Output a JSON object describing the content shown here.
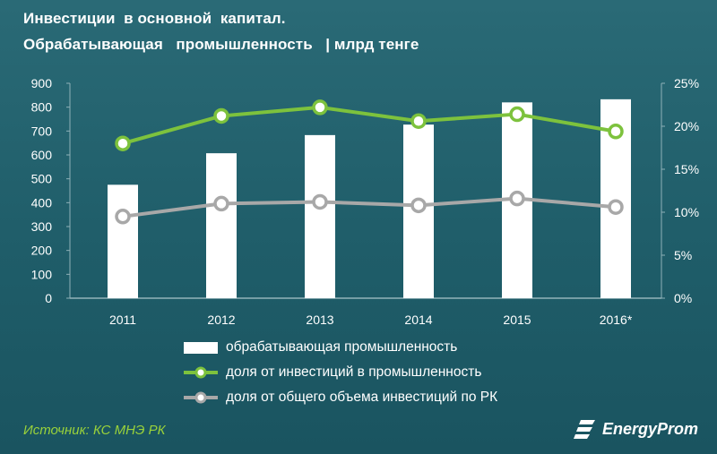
{
  "header": {
    "title_line1": "Инвестиции  в основной  капитал.",
    "title_line2": "Обрабатывающая   промышленность   | млрд тенге"
  },
  "chart_data": {
    "type": "bar+line",
    "categories": [
      "2011",
      "2012",
      "2013",
      "2014",
      "2015",
      "2016*"
    ],
    "left_axis": {
      "ticks": [
        "0",
        "100",
        "200",
        "300",
        "400",
        "500",
        "600",
        "700",
        "800",
        "900"
      ],
      "ylim": [
        0,
        900
      ]
    },
    "right_axis": {
      "ticks": [
        "0%",
        "5%",
        "10%",
        "15%",
        "20%",
        "25%"
      ],
      "ylim": [
        0,
        25
      ]
    },
    "series": [
      {
        "name": "обрабатывающая промышленность",
        "type": "bar",
        "axis": "left",
        "color": "#ffffff",
        "values": [
          475,
          607,
          683,
          727,
          820,
          833
        ]
      },
      {
        "name": "доля от инвестиций в промышленность",
        "type": "line",
        "axis": "right",
        "color": "#7dc23d",
        "values": [
          18.0,
          21.2,
          22.2,
          20.6,
          21.4,
          19.4
        ]
      },
      {
        "name": "доля от общего объема инвестиций по РК",
        "type": "line",
        "axis": "right",
        "color": "#a8a8a8",
        "values": [
          9.5,
          11.0,
          11.2,
          10.8,
          11.6,
          10.6
        ]
      }
    ],
    "grid": false,
    "legend_position": "bottom"
  },
  "footer": {
    "source": "Источник: КС МНЭ РК",
    "logo_text": "EnergyProm"
  }
}
